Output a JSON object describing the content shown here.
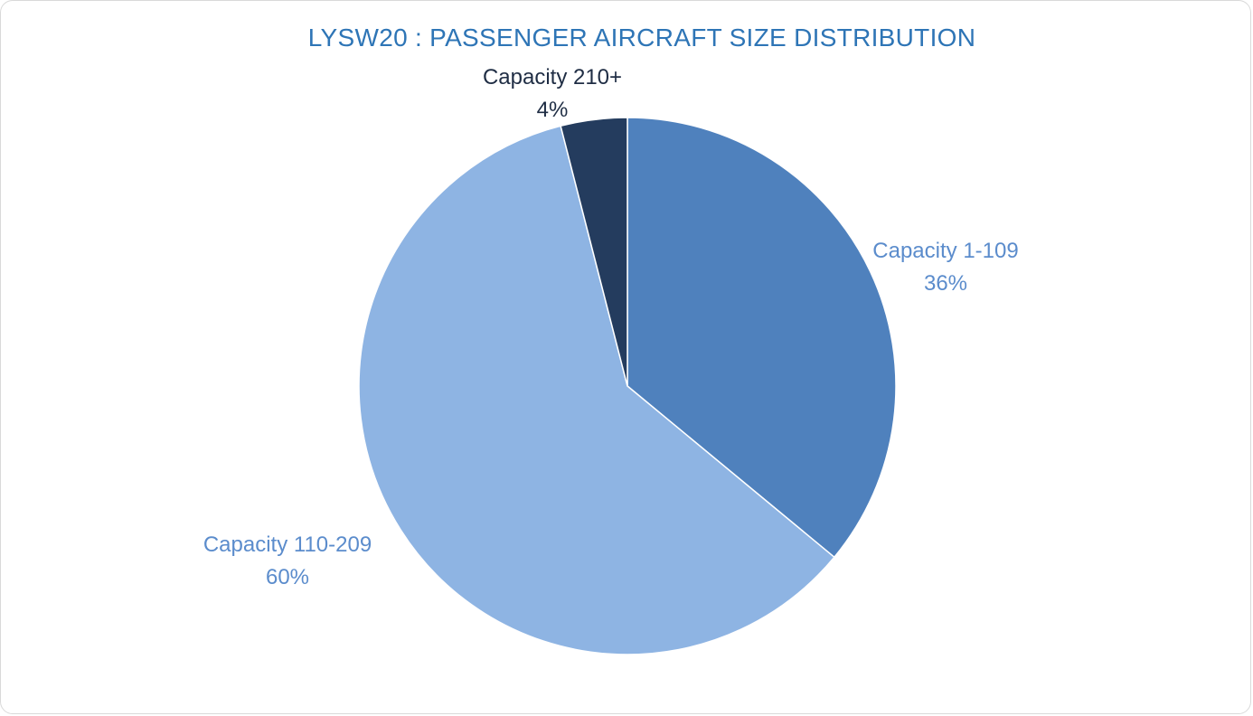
{
  "chart_data": {
    "type": "pie",
    "title": "LYSW20 : PASSENGER AIRCRAFT SIZE DISTRIBUTION",
    "slices": [
      {
        "label": "Capacity 1-109",
        "value": 36,
        "value_label": "36%",
        "color": "#4f81bd",
        "label_color": "#5b8ccc"
      },
      {
        "label": "Capacity 110-209",
        "value": 60,
        "value_label": "60%",
        "color": "#8eb4e3",
        "label_color": "#5b8ccc"
      },
      {
        "label": "Capacity 210+",
        "value": 4,
        "value_label": "4%",
        "color": "#243c5e",
        "label_color": "#1f2d44"
      }
    ],
    "start_angle": "12 o'clock",
    "direction": "clockwise",
    "legend": "none",
    "data_labels": "outside"
  }
}
